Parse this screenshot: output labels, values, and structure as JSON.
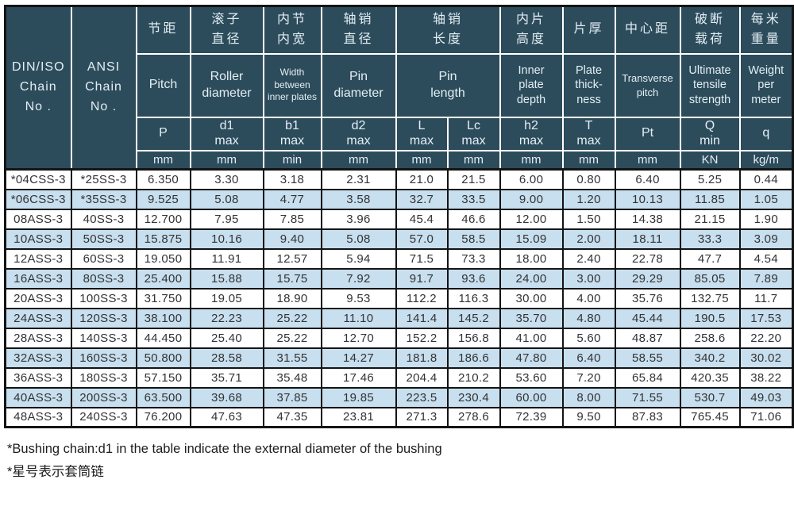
{
  "colors": {
    "header_bg": "#2d4c5b",
    "header_text": "#e3eef5",
    "row_alt_bg": "#c7dfef",
    "row_bg": "#ffffff",
    "border": "#141414",
    "text": "#333333"
  },
  "table": {
    "corner": {
      "din_iso": "DIN/ISO\nChain\nNo .",
      "ansi": "ANSI\nChain\nNo ."
    },
    "groups": [
      {
        "zh": "节距",
        "en": "Pitch",
        "sym": "P",
        "unit": "mm"
      },
      {
        "zh": "滚子\n直径",
        "en": "Roller\ndiameter",
        "sym": "d1\nmax",
        "unit": "mm"
      },
      {
        "zh": "内节\n内宽",
        "en": "Width\nbetween\ninner plates",
        "sym": "b1\nmax",
        "unit": "min"
      },
      {
        "zh": "轴销\n直径",
        "en": "Pin\ndiameter",
        "sym": "d2\nmax",
        "unit": "mm"
      },
      {
        "zh": "轴销\n长度",
        "en": "Pin\nlength",
        "sub": [
          {
            "sym": "L\nmax",
            "unit": "mm"
          },
          {
            "sym": "Lc\nmax",
            "unit": "mm"
          }
        ]
      },
      {
        "zh": "内片\n高度",
        "en": "Inner\nplate\ndepth",
        "sym": "h2\nmax",
        "unit": "mm"
      },
      {
        "zh": "片厚",
        "en": "Plate\nthick-\nness",
        "sym": "T\nmax",
        "unit": "mm"
      },
      {
        "zh": "中心距",
        "en": "Transverse\npitch",
        "sym": "Pt",
        "unit": "mm"
      },
      {
        "zh": "破断\n载荷",
        "en": "Ultimate\ntensile\nstrength",
        "sym": "Q\nmin",
        "unit": "KN"
      },
      {
        "zh": "每米\n重量",
        "en": "Weight\nper\nmeter",
        "sym": "q",
        "unit": "kg/m"
      }
    ],
    "rows": [
      [
        "*04CSS-3",
        "*25SS-3",
        "6.350",
        "3.30",
        "3.18",
        "2.31",
        "21.0",
        "21.5",
        "6.00",
        "0.80",
        "6.40",
        "5.25",
        "0.44"
      ],
      [
        "*06CSS-3",
        "*35SS-3",
        "9.525",
        "5.08",
        "4.77",
        "3.58",
        "32.7",
        "33.5",
        "9.00",
        "1.20",
        "10.13",
        "11.85",
        "1.05"
      ],
      [
        "08ASS-3",
        "40SS-3",
        "12.700",
        "7.95",
        "7.85",
        "3.96",
        "45.4",
        "46.6",
        "12.00",
        "1.50",
        "14.38",
        "21.15",
        "1.90"
      ],
      [
        "10ASS-3",
        "50SS-3",
        "15.875",
        "10.16",
        "9.40",
        "5.08",
        "57.0",
        "58.5",
        "15.09",
        "2.00",
        "18.11",
        "33.3",
        "3.09"
      ],
      [
        "12ASS-3",
        "60SS-3",
        "19.050",
        "11.91",
        "12.57",
        "5.94",
        "71.5",
        "73.3",
        "18.00",
        "2.40",
        "22.78",
        "47.7",
        "4.54"
      ],
      [
        "16ASS-3",
        "80SS-3",
        "25.400",
        "15.88",
        "15.75",
        "7.92",
        "91.7",
        "93.6",
        "24.00",
        "3.00",
        "29.29",
        "85.05",
        "7.89"
      ],
      [
        "20ASS-3",
        "100SS-3",
        "31.750",
        "19.05",
        "18.90",
        "9.53",
        "112.2",
        "116.3",
        "30.00",
        "4.00",
        "35.76",
        "132.75",
        "11.7"
      ],
      [
        "24ASS-3",
        "120SS-3",
        "38.100",
        "22.23",
        "25.22",
        "11.10",
        "141.4",
        "145.2",
        "35.70",
        "4.80",
        "45.44",
        "190.5",
        "17.53"
      ],
      [
        "28ASS-3",
        "140SS-3",
        "44.450",
        "25.40",
        "25.22",
        "12.70",
        "152.2",
        "156.8",
        "41.00",
        "5.60",
        "48.87",
        "258.6",
        "22.20"
      ],
      [
        "32ASS-3",
        "160SS-3",
        "50.800",
        "28.58",
        "31.55",
        "14.27",
        "181.8",
        "186.6",
        "47.80",
        "6.40",
        "58.55",
        "340.2",
        "30.02"
      ],
      [
        "36ASS-3",
        "180SS-3",
        "57.150",
        "35.71",
        "35.48",
        "17.46",
        "204.4",
        "210.2",
        "53.60",
        "7.20",
        "65.84",
        "420.35",
        "38.22"
      ],
      [
        "40ASS-3",
        "200SS-3",
        "63.500",
        "39.68",
        "37.85",
        "19.85",
        "223.5",
        "230.4",
        "60.00",
        "8.00",
        "71.55",
        "530.7",
        "49.03"
      ],
      [
        "48ASS-3",
        "240SS-3",
        "76.200",
        "47.63",
        "47.35",
        "23.81",
        "271.3",
        "278.6",
        "72.39",
        "9.50",
        "87.83",
        "765.45",
        "71.06"
      ]
    ]
  },
  "footnotes": [
    "*Bushing chain:d1 in the table indicate the external diameter of the bushing",
    "*星号表示套筒链"
  ]
}
